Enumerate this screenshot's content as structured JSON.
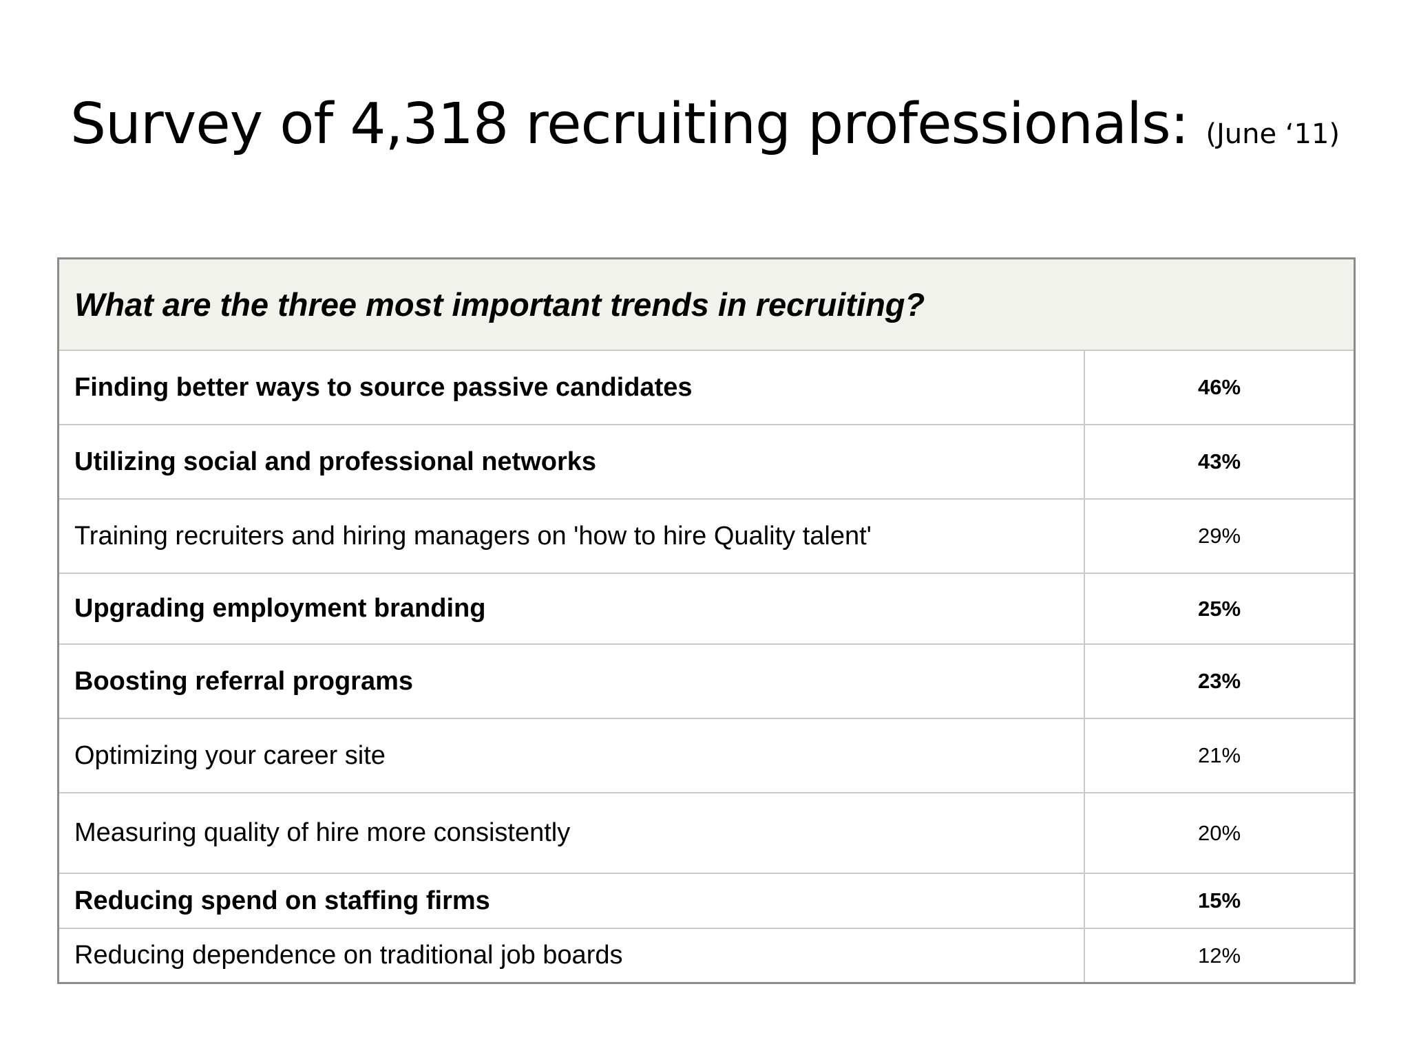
{
  "slide": {
    "title_main": "Survey of 4,318 recruiting professionals: ",
    "title_date": "(June ‘11)"
  },
  "table": {
    "question": "What are the three most important trends in recruiting?",
    "rows": [
      {
        "label": "Finding better ways to source passive candidates",
        "value": "46%",
        "bold": true
      },
      {
        "label": "Utilizing social and professional networks",
        "value": "43%",
        "bold": true
      },
      {
        "label": "Training recruiters and hiring managers on 'how to hire Quality talent'",
        "value": "29%",
        "bold": false
      },
      {
        "label": "Upgrading employment branding",
        "value": "25%",
        "bold": true
      },
      {
        "label": "Boosting referral programs",
        "value": "23%",
        "bold": true
      },
      {
        "label": "Optimizing your career site",
        "value": "21%",
        "bold": false
      },
      {
        "label": "Measuring quality of hire more consistently",
        "value": "20%",
        "bold": false
      },
      {
        "label": "Reducing spend on staffing firms",
        "value": "15%",
        "bold": true
      },
      {
        "label": "Reducing dependence on traditional job boards",
        "value": "12%",
        "bold": false
      }
    ]
  }
}
